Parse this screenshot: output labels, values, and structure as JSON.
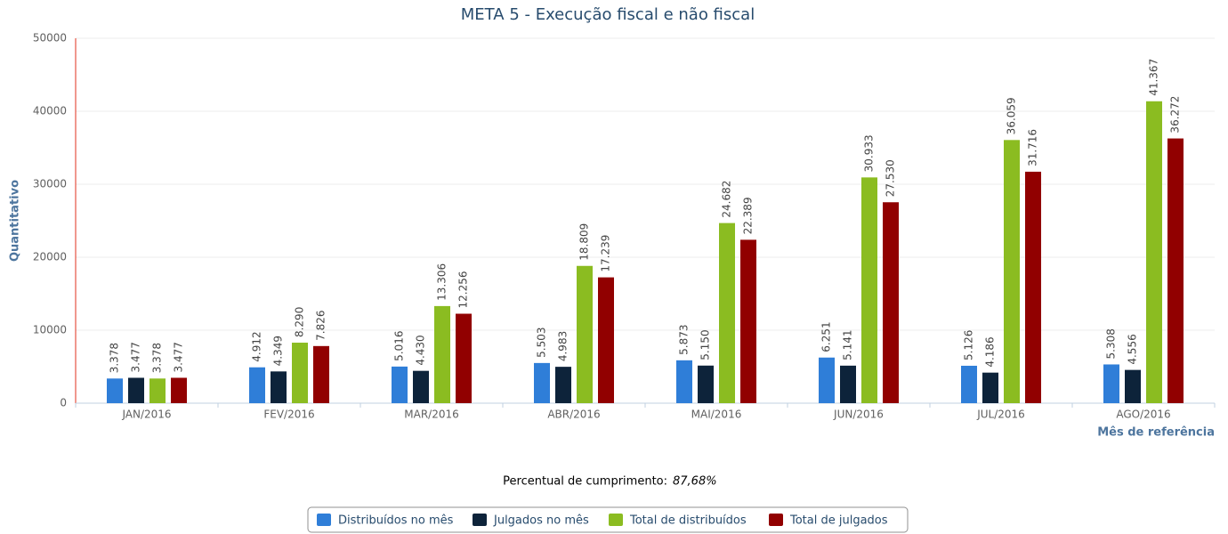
{
  "chart_data": {
    "type": "bar",
    "title": "META 5 - Execução fiscal e não fiscal",
    "y_axis_title": "Quantitativo",
    "x_axis_title": "Mês de referência",
    "annotation": {
      "label": "Percentual de cumprimento:",
      "value": "87,68%"
    },
    "categories": [
      "JAN/2016",
      "FEV/2016",
      "MAR/2016",
      "ABR/2016",
      "MAI/2016",
      "JUN/2016",
      "JUL/2016",
      "AGO/2016"
    ],
    "series": [
      {
        "name": "Distribuídos no mês",
        "color": "#2f7ed8",
        "values": [
          3378,
          4912,
          5016,
          5503,
          5873,
          6251,
          5126,
          5308
        ],
        "value_labels": [
          "3.378",
          "4.912",
          "5.016",
          "5.503",
          "5.873",
          "6.251",
          "5.126",
          "5.308"
        ]
      },
      {
        "name": "Julgados no mês",
        "color": "#0d233a",
        "values": [
          3477,
          4349,
          4430,
          4983,
          5150,
          5141,
          4186,
          4556
        ],
        "value_labels": [
          "3.477",
          "4.349",
          "4.430",
          "4.983",
          "5.150",
          "5.141",
          "4.186",
          "4.556"
        ]
      },
      {
        "name": "Total de distribuídos",
        "color": "#8bbc21",
        "values": [
          3378,
          8290,
          13306,
          18809,
          24682,
          30933,
          36059,
          41367
        ],
        "value_labels": [
          "3.378",
          "8.290",
          "13.306",
          "18.809",
          "24.682",
          "30.933",
          "36.059",
          "41.367"
        ]
      },
      {
        "name": "Total de julgados",
        "color": "#910000",
        "values": [
          3477,
          7826,
          12256,
          17239,
          22389,
          27530,
          31716,
          36272
        ],
        "value_labels": [
          "3.477",
          "7.826",
          "12.256",
          "17.239",
          "22.389",
          "27.530",
          "31.716",
          "36.272"
        ]
      }
    ],
    "ylim": [
      0,
      50000
    ],
    "yticks": [
      0,
      10000,
      20000,
      30000,
      40000,
      50000
    ],
    "grid": true,
    "legend": "bottom"
  }
}
